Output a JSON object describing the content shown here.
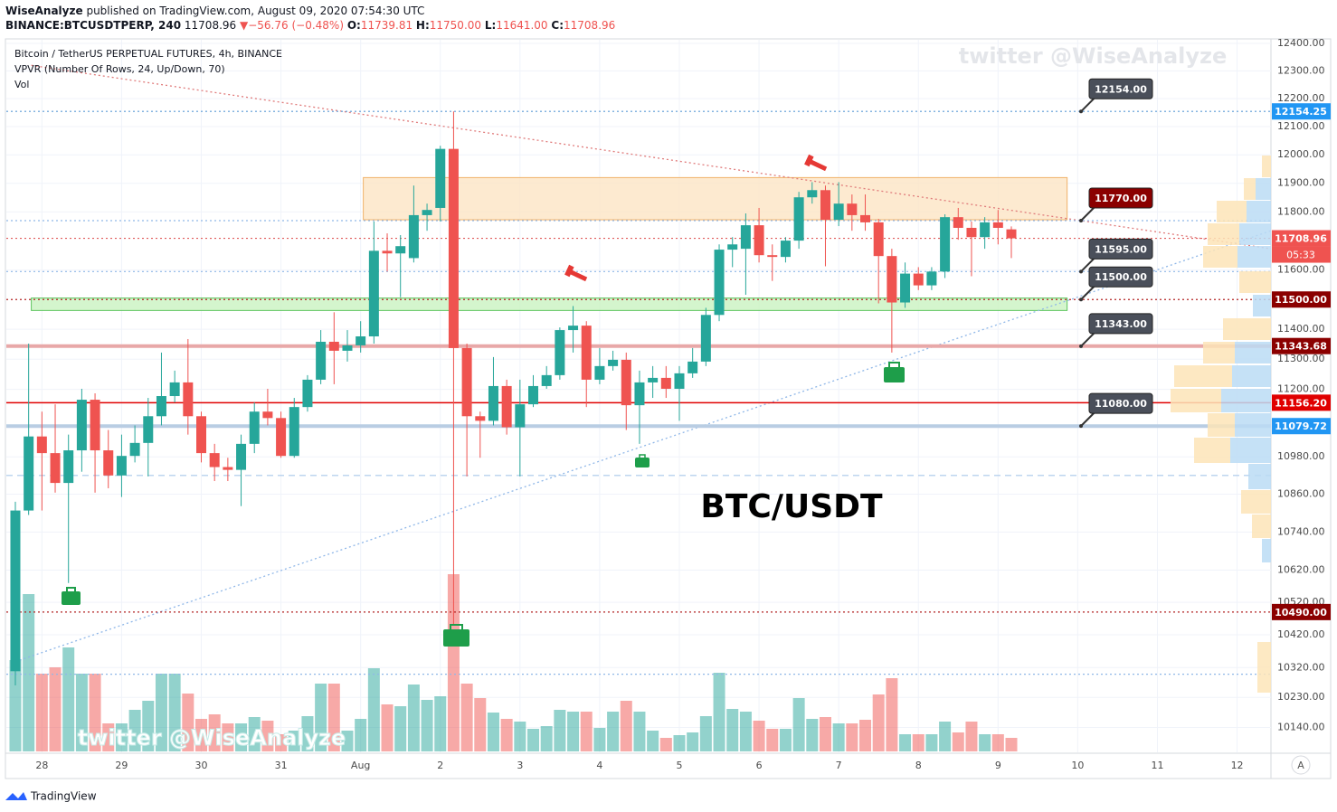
{
  "header": {
    "author": "WiseAnalyze",
    "published": "published on TradingView.com, August 09, 2020 07:54:30 UTC",
    "symbol": "BINANCE:BTCUSDTPERP, 240",
    "price": "11708.96",
    "arrow": "▼",
    "change": "−56.76 (−0.48%)",
    "o_label": "O:",
    "open": "11739.81",
    "h_label": "H:",
    "high": "11750.00",
    "l_label": "L:",
    "low": "11641.00",
    "c_label": "C:",
    "close": "11708.96"
  },
  "footer": {
    "brand": "TradingView",
    "auto_button": "A"
  },
  "chart_data": {
    "type": "candlestick",
    "title": "Bitcoin / TetherUS PERPETUAL FUTURES, 4h, BINANCE",
    "indicators": [
      "VPVR (Number Of Rows, 24, Up/Down, 70)",
      "Vol"
    ],
    "annotation": "BTC/USDT",
    "watermark": "twitter @WiseAnalyze",
    "countdown": "05:33",
    "log_scale": true,
    "grid": true,
    "up_color": "#26a69a",
    "down_color": "#ef5350",
    "ylim": [
      10066,
      12413
    ],
    "xlim": [
      -0.68,
      94.55
    ],
    "yticks": [
      {
        "value": 12400,
        "label": "12400.00"
      },
      {
        "value": 12300,
        "label": "12300.00"
      },
      {
        "value": 12200,
        "label": "12200.00"
      },
      {
        "value": 12100,
        "label": "12100.00"
      },
      {
        "value": 12000,
        "label": "12000.00"
      },
      {
        "value": 11900,
        "label": "11900.00"
      },
      {
        "value": 11800,
        "label": "11800.00"
      },
      {
        "value": 11600,
        "label": "11600.00"
      },
      {
        "value": 11400,
        "label": "11400.00"
      },
      {
        "value": 11300,
        "label": "11300.00"
      },
      {
        "value": 11200,
        "label": "11200.00"
      },
      {
        "value": 10980,
        "label": "10980.00"
      },
      {
        "value": 10860,
        "label": "10860.00"
      },
      {
        "value": 10740,
        "label": "10740.00"
      },
      {
        "value": 10620,
        "label": "10620.00"
      },
      {
        "value": 10520,
        "label": "10520.00"
      },
      {
        "value": 10420,
        "label": "10420.00"
      },
      {
        "value": 10320,
        "label": "10320.00"
      },
      {
        "value": 10230,
        "label": "10230.00"
      },
      {
        "value": 10140,
        "label": "10140.00"
      }
    ],
    "xticks": [
      {
        "value": 2,
        "label": "28"
      },
      {
        "value": 8,
        "label": "29"
      },
      {
        "value": 14,
        "label": "30"
      },
      {
        "value": 20,
        "label": "31"
      },
      {
        "value": 26,
        "label": "Aug"
      },
      {
        "value": 32,
        "label": "2"
      },
      {
        "value": 38,
        "label": "3"
      },
      {
        "value": 44,
        "label": "4"
      },
      {
        "value": 50,
        "label": "5"
      },
      {
        "value": 56,
        "label": "6"
      },
      {
        "value": 62,
        "label": "7"
      },
      {
        "value": 68,
        "label": "8"
      },
      {
        "value": 74,
        "label": "9"
      },
      {
        "value": 80,
        "label": "10"
      },
      {
        "value": 86,
        "label": "11"
      },
      {
        "value": 92,
        "label": "12"
      }
    ],
    "open": [
      10309,
      10808,
      11046,
      10992,
      10896,
      11001,
      11166,
      11001,
      10920,
      10983,
      11025,
      11112,
      11178,
      11223,
      11112,
      10992,
      10947,
      10938,
      11022,
      11127,
      11106,
      10983,
      11142,
      11232,
      11358,
      11328,
      11346,
      11376,
      11666,
      11657,
      11641,
      11789,
      11814,
      12021,
      11337,
      11112,
      11097,
      11211,
      11076,
      11151,
      11211,
      11247,
      11397,
      11412,
      11232,
      11277,
      11298,
      11148,
      11223,
      11238,
      11202,
      11253,
      11292,
      11448,
      11670,
      11673,
      11754,
      11651,
      11645,
      11701,
      11851,
      11876,
      11773,
      11829,
      11789,
      11764,
      11648,
      11490,
      11588,
      11548,
      11595,
      11782,
      11745,
      11713,
      11764,
      11739.81
    ],
    "high": [
      10836,
      11352,
      11127,
      11151,
      11052,
      11202,
      11187,
      11067,
      11052,
      11082,
      11172,
      11322,
      11262,
      11367,
      11127,
      11022,
      10977,
      11052,
      11157,
      11202,
      11127,
      11172,
      11247,
      11397,
      11457,
      11397,
      11427,
      11767,
      11726,
      11720,
      11892,
      11829,
      12032,
      12154,
      11352,
      11127,
      11307,
      11232,
      11232,
      11247,
      11277,
      11406,
      11478,
      11427,
      11337,
      11328,
      11322,
      11262,
      11277,
      11277,
      11277,
      11337,
      11472,
      11688,
      11713,
      11795,
      11814,
      11688,
      11713,
      11870,
      11904,
      11892,
      11904,
      11861,
      11861,
      11776,
      11673,
      11626,
      11610,
      11610,
      11792,
      11814,
      11767,
      11782,
      11807,
      11750
    ],
    "low": [
      10266,
      10794,
      10808,
      10865,
      10580,
      10932,
      10865,
      10879,
      10851,
      10962,
      10917,
      11082,
      11157,
      11052,
      10962,
      10902,
      10902,
      10822,
      10992,
      11082,
      10977,
      10977,
      11127,
      11217,
      11217,
      11292,
      11322,
      11352,
      11595,
      11508,
      11626,
      11735,
      11767,
      10452,
      10917,
      10977,
      11082,
      11052,
      10917,
      11142,
      11202,
      11232,
      11322,
      11142,
      11217,
      11262,
      11067,
      11022,
      11172,
      11172,
      11097,
      11238,
      11277,
      11427,
      11610,
      11516,
      11626,
      11563,
      11626,
      11673,
      11829,
      11613,
      11751,
      11735,
      11735,
      11487,
      11322,
      11472,
      11532,
      11532,
      11573,
      11704,
      11579,
      11673,
      11688,
      11641
    ],
    "close": [
      10808,
      11046,
      10992,
      10896,
      11001,
      11166,
      11001,
      10920,
      10983,
      11025,
      11112,
      11178,
      11223,
      11112,
      10992,
      10947,
      10938,
      11022,
      11127,
      11106,
      10983,
      11142,
      11232,
      11358,
      11328,
      11346,
      11376,
      11666,
      11657,
      11682,
      11789,
      11807,
      12021,
      11337,
      11112,
      11097,
      11211,
      11076,
      11151,
      11211,
      11247,
      11397,
      11412,
      11232,
      11277,
      11298,
      11148,
      11223,
      11238,
      11202,
      11253,
      11292,
      11448,
      11670,
      11688,
      11754,
      11651,
      11645,
      11701,
      11851,
      11876,
      11773,
      11829,
      11789,
      11764,
      11648,
      11490,
      11588,
      11548,
      11595,
      11782,
      11745,
      11713,
      11764,
      11745,
      11708.96
    ],
    "volume": [
      101,
      174,
      86,
      93,
      115,
      86,
      86,
      31,
      31,
      46,
      56,
      86,
      86,
      64,
      36,
      41,
      31,
      31,
      38,
      34,
      19,
      23,
      39,
      75,
      75,
      23,
      36,
      92,
      52,
      50,
      74,
      57,
      61,
      196,
      75,
      59,
      43,
      36,
      33,
      25,
      28,
      46,
      44,
      44,
      26,
      44,
      56,
      44,
      23,
      15,
      18,
      21,
      39,
      87,
      47,
      44,
      34,
      25,
      25,
      59,
      36,
      38,
      31,
      31,
      35,
      63,
      81,
      19,
      19,
      19,
      33,
      21,
      33,
      19,
      19,
      15
    ],
    "hlines": [
      {
        "value": 12154.25,
        "color": "#5b9bd5",
        "style": "dotted",
        "axis_label": true,
        "label_color": "#2196f3"
      },
      {
        "value": 11770,
        "color": "#8fb7e8",
        "style": "dotted",
        "axis_label": false
      },
      {
        "value": 11708.96,
        "color": "#e05a5a",
        "style": "dotted",
        "axis_label": true,
        "label_color": "#ef5350"
      },
      {
        "value": 11595,
        "color": "#8fb7e8",
        "style": "dotted",
        "axis_label": false
      },
      {
        "value": 11500,
        "label": "11500.00",
        "color": "#b22222",
        "style": "dotted",
        "axis_label": true,
        "label_color": "#8b0000"
      },
      {
        "value": 11343.68,
        "color": "#e8a8a8",
        "style": "thick",
        "axis_label": true,
        "label_color": "#8b0000"
      },
      {
        "value": 11156.2,
        "label": "11156.20",
        "color": "#e00000",
        "style": "solid",
        "axis_label": true,
        "label_color": "#e00000"
      },
      {
        "value": 11079.72,
        "color": "#b9cde3",
        "style": "thick",
        "axis_label": true,
        "label_color": "#2196f3"
      },
      {
        "value": 10920,
        "color": "#a9c8ea",
        "style": "dashed",
        "axis_label": false
      },
      {
        "value": 10490,
        "label": "10490.00",
        "color": "#b22222",
        "style": "dotted",
        "axis_label": true,
        "label_color": "#8b0000"
      },
      {
        "value": 10300,
        "color": "#8fb7e8",
        "style": "dotted",
        "axis_label": false
      }
    ],
    "callouts": [
      {
        "value": 12154,
        "label": "12154.00",
        "color": "#4a4f5a"
      },
      {
        "value": 11770,
        "label": "11770.00",
        "color": "#8b0000"
      },
      {
        "value": 11595,
        "label": "11595.00",
        "color": "#4a4f5a"
      },
      {
        "value": 11500,
        "label": "11500.00",
        "color": "#4a4f5a"
      },
      {
        "value": 11343,
        "label": "11343.00",
        "color": "#4a4f5a"
      },
      {
        "value": 11080,
        "label": "11080.00",
        "color": "#4a4f5a"
      }
    ],
    "zones": [
      {
        "x": [
          26.2,
          79.2
        ],
        "y": [
          11773,
          11920
        ],
        "color": "#fde5c4",
        "border": "#f0b26a"
      },
      {
        "x": [
          1.2,
          79.2
        ],
        "y": [
          11463,
          11505
        ],
        "color": "#c9f2c0",
        "border": "#5cc45c"
      }
    ],
    "trendlines": [
      {
        "x": [
          1.2,
          94.55
        ],
        "y": [
          12320,
          11673
        ],
        "color": "#e07b7b"
      },
      {
        "x": [
          0,
          94.55
        ],
        "y": [
          10338,
          11735
        ],
        "color": "#8fb7e8"
      }
    ]
  }
}
